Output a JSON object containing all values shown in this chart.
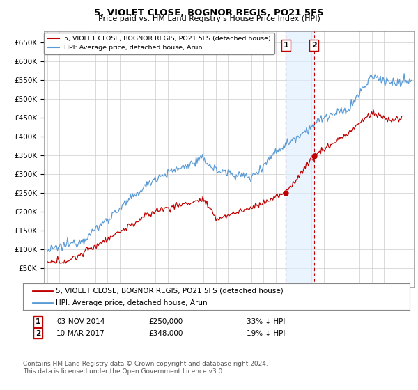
{
  "title": "5, VIOLET CLOSE, BOGNOR REGIS, PO21 5FS",
  "subtitle": "Price paid vs. HM Land Registry's House Price Index (HPI)",
  "legend_line1": "5, VIOLET CLOSE, BOGNOR REGIS, PO21 5FS (detached house)",
  "legend_line2": "HPI: Average price, detached house, Arun",
  "sale1_date": "03-NOV-2014",
  "sale1_price": 250000,
  "sale1_label": "33% ↓ HPI",
  "sale1_x": 2014.84,
  "sale2_date": "10-MAR-2017",
  "sale2_price": 348000,
  "sale2_label": "19% ↓ HPI",
  "sale2_x": 2017.19,
  "footnote1": "Contains HM Land Registry data © Crown copyright and database right 2024.",
  "footnote2": "This data is licensed under the Open Government Licence v3.0.",
  "hpi_color": "#5b9bd5",
  "price_color": "#c00000",
  "vline_color": "#c00000",
  "shade_color": "#ddeeff",
  "ylim_min": 0,
  "ylim_max": 680000,
  "ytick_step": 50000,
  "xmin": 1994.7,
  "xmax": 2025.5
}
